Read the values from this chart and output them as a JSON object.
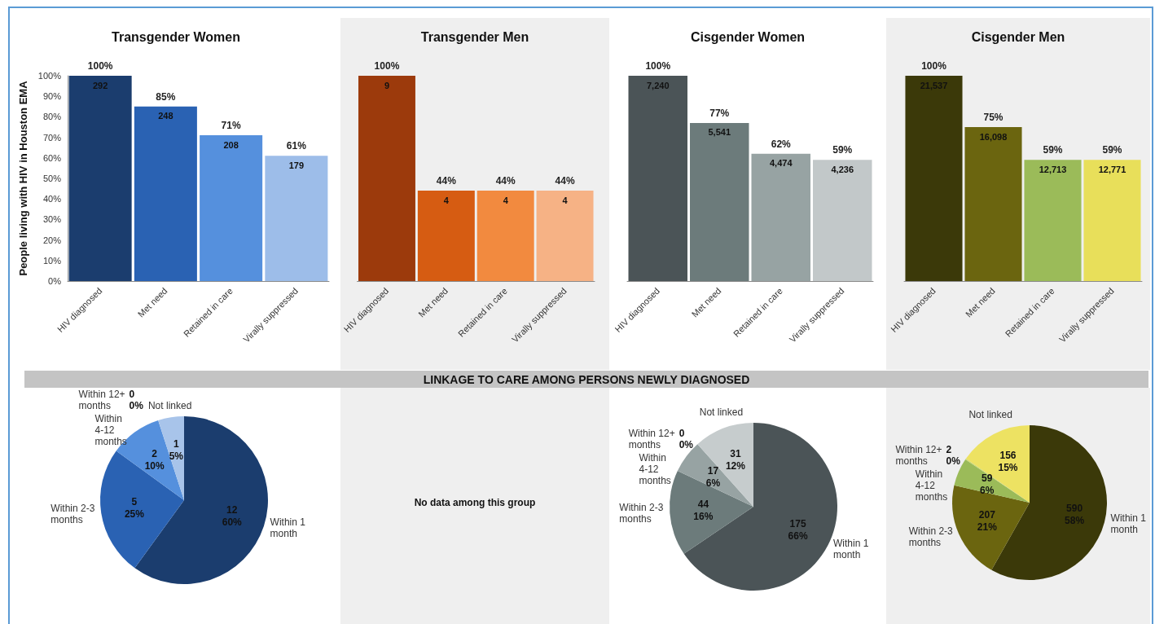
{
  "chart_data": [
    {
      "type": "bar",
      "title": "Transgender Women",
      "ylabel": "People living with HIV in Houston EMA",
      "categories": [
        "HIV diagnosed",
        "Met need",
        "Retained in care",
        "Virally suppressed"
      ],
      "values": [
        100,
        85,
        71,
        61
      ],
      "colors": [
        "#1b3d6e",
        "#2a62b3",
        "#5590dd",
        "#9dbde9"
      ],
      "value_labels": [
        "100%",
        "85%",
        "71%",
        "61%"
      ],
      "annotations": [
        {
          "text": "292",
          "x": "HIV diagnosed",
          "y": 100
        },
        {
          "text": "248",
          "x": "Met need",
          "y": 85
        },
        {
          "text": "208",
          "x": "Retained in care",
          "y": 71
        },
        {
          "text": "179",
          "x": "Virally suppressed",
          "y": 61
        }
      ],
      "ylim": [
        0,
        100
      ],
      "yticks": [
        {
          "value": 0,
          "label": "0%"
        },
        {
          "value": 10,
          "label": "10%"
        },
        {
          "value": 20,
          "label": "20%"
        },
        {
          "value": 30,
          "label": "30%"
        },
        {
          "value": 40,
          "label": "40%"
        },
        {
          "value": 50,
          "label": "50%"
        },
        {
          "value": 60,
          "label": "60%"
        },
        {
          "value": 70,
          "label": "70%"
        },
        {
          "value": 80,
          "label": "80%"
        },
        {
          "value": 90,
          "label": "90%"
        },
        {
          "value": 100,
          "label": "100%"
        }
      ],
      "grid": false
    },
    {
      "type": "bar",
      "title": "Transgender Men",
      "categories": [
        "HIV diagnosed",
        "Met need",
        "Retained in care",
        "Virally suppressed"
      ],
      "values": [
        100,
        44,
        44,
        44
      ],
      "colors": [
        "#9c3a0c",
        "#d65c12",
        "#f28a3f",
        "#f6b285"
      ],
      "value_labels": [
        "100%",
        "44%",
        "44%",
        "44%"
      ],
      "annotations": [
        {
          "text": "9",
          "x": "HIV diagnosed",
          "y": 100
        },
        {
          "text": "4",
          "x": "Met need",
          "y": 44
        },
        {
          "text": "4",
          "x": "Retained in care",
          "y": 44
        },
        {
          "text": "4",
          "x": "Virally suppressed",
          "y": 44
        }
      ],
      "ylim": [
        0,
        100
      ],
      "tick_labels": "x",
      "grid": false
    },
    {
      "type": "bar",
      "title": "Cisgender Women",
      "categories": [
        "HIV diagnosed",
        "Met need",
        "Retained in care",
        "Virally suppressed"
      ],
      "values": [
        100,
        77,
        62,
        59
      ],
      "colors": [
        "#4b5457",
        "#6c7b7b",
        "#97a3a3",
        "#c2c8c9"
      ],
      "value_labels": [
        "100%",
        "77%",
        "62%",
        "59%"
      ],
      "annotations": [
        {
          "text": "7,240",
          "x": "HIV diagnosed",
          "y": 100
        },
        {
          "text": "5,541",
          "x": "Met need",
          "y": 77
        },
        {
          "text": "4,474",
          "x": "Retained in care",
          "y": 62
        },
        {
          "text": "4,236",
          "x": "Virally suppressed",
          "y": 59
        }
      ],
      "ylim": [
        0,
        100
      ],
      "tick_labels": "x",
      "grid": false
    },
    {
      "type": "bar",
      "title": "Cisgender Men",
      "categories": [
        "HIV diagnosed",
        "Met need",
        "Retained in care",
        "Virally suppressed"
      ],
      "values": [
        100,
        75,
        59,
        59
      ],
      "colors": [
        "#3b3909",
        "#6b650f",
        "#9bbb59",
        "#e8df5a"
      ],
      "value_labels": [
        "100%",
        "75%",
        "59%",
        "59%"
      ],
      "annotations": [
        {
          "text": "21,537",
          "x": "HIV diagnosed",
          "y": 100
        },
        {
          "text": "16,098",
          "x": "Met need",
          "y": 75
        },
        {
          "text": "12,713",
          "x": "Retained in care",
          "y": 59
        },
        {
          "text": "12,771",
          "x": "Virally suppressed",
          "y": 59
        }
      ],
      "ylim": [
        0,
        100
      ],
      "tick_labels": "x",
      "grid": false
    },
    {
      "type": "other",
      "title": "LINKAGE TO CARE AMONG PERSONS NEWLY DIAGNOSED"
    },
    {
      "type": "pie",
      "categories": [
        "Within 1 month",
        "Within 2-3 months",
        "Within 4-12 months",
        "Within 12+ months",
        "Not linked"
      ],
      "values": [
        12,
        5,
        2,
        0,
        1
      ],
      "colors": [
        "#1b3d6e",
        "#2a62b3",
        "#5590dd",
        "#7fa9e0",
        "#a8c4ea"
      ],
      "value_labels": [
        "12\n60%",
        "5\n25%",
        "2\n10%",
        "0\n0%",
        "1\n5%"
      ]
    },
    {
      "type": "other",
      "annotations": [
        "No data among this group"
      ]
    },
    {
      "type": "pie",
      "categories": [
        "Within 1 month",
        "Within 2-3 months",
        "Within 4-12 months",
        "Within 12+ months",
        "Not linked"
      ],
      "values": [
        175,
        44,
        17,
        0,
        31
      ],
      "colors": [
        "#4b5457",
        "#6c7b7b",
        "#97a3a3",
        "#b0b8b8",
        "#c6cccd"
      ],
      "value_labels": [
        "175\n66%",
        "44\n16%",
        "17\n6%",
        "0\n0%",
        "31\n12%"
      ]
    },
    {
      "type": "pie",
      "categories": [
        "Within 1 month",
        "Within 2-3 months",
        "Within 4-12 months",
        "Within 12+ months",
        "Not linked"
      ],
      "values": [
        590,
        207,
        59,
        2,
        156
      ],
      "colors": [
        "#3b3909",
        "#6b650f",
        "#9bbb59",
        "#c8d86b",
        "#ede262"
      ],
      "value_labels": [
        "590\n58%",
        "207\n21%",
        "59\n6%",
        "2\n0%",
        "156\n15%"
      ]
    }
  ]
}
